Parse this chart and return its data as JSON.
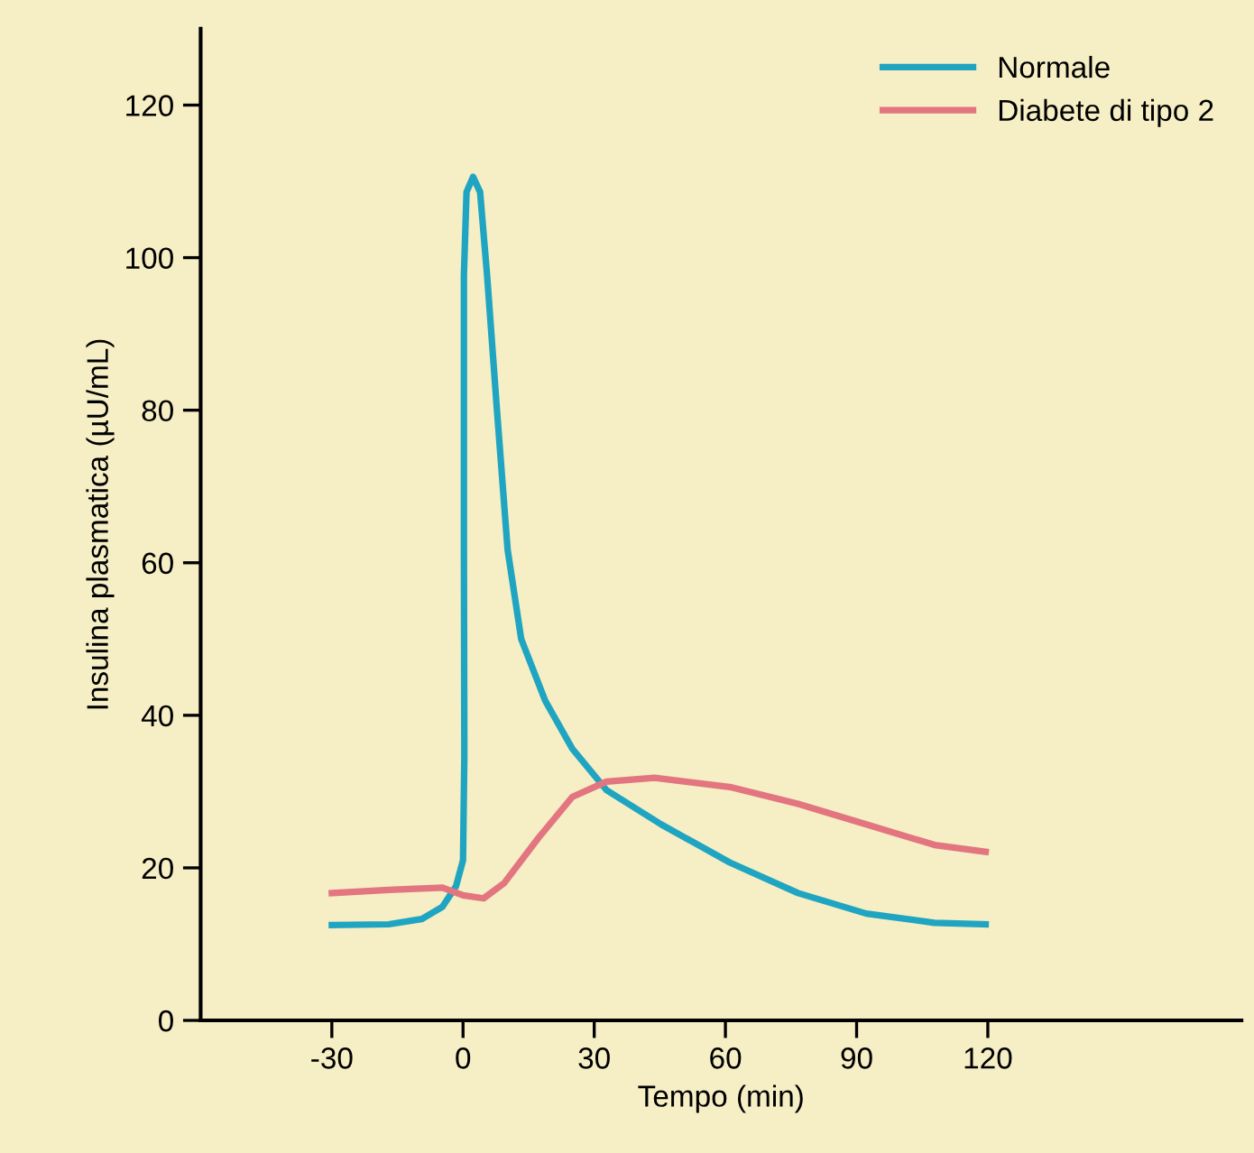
{
  "chart_data": {
    "type": "line",
    "xlabel": "Tempo (min)",
    "ylabel": "Insulina plasmatica (µU/mL)",
    "xlim": [
      -60,
      178
    ],
    "ylim": [
      0,
      130
    ],
    "xticks": [
      -30,
      0,
      30,
      60,
      90,
      120
    ],
    "yticks": [
      0,
      20,
      40,
      60,
      80,
      100,
      120
    ],
    "grid": false,
    "legend": "top right",
    "marker": "none",
    "line_style": "solid",
    "series": [
      {
        "name": "Normale",
        "color": "#1fa5c2",
        "x": [
          -30,
          -17,
          -9.4,
          -4.7,
          -1.6,
          0,
          0.3,
          0.2,
          0.2,
          0.8,
          2.3,
          3.9,
          5.5,
          7.8,
          10.2,
          13.3,
          18.8,
          25,
          32.8,
          45.3,
          61,
          76.6,
          92.2,
          107.8,
          119.5
        ],
        "values": [
          12.5,
          12.6,
          13.3,
          14.9,
          17.6,
          21,
          34.7,
          61.7,
          97.7,
          108.6,
          110.6,
          108.6,
          97.7,
          79.7,
          61.7,
          50,
          41.9,
          35.6,
          30.2,
          25.7,
          20.7,
          16.7,
          14,
          12.8,
          12.6
        ]
      },
      {
        "name": "Diabete di tipo 2",
        "color": "#e27580",
        "x": [
          -30,
          -17,
          -4.7,
          0,
          4.7,
          9.4,
          17.2,
          25,
          32.8,
          43.8,
          61,
          76.6,
          92.2,
          107.8,
          119.5
        ],
        "values": [
          16.7,
          17.1,
          17.4,
          16.4,
          16,
          18,
          23.9,
          29.3,
          31.3,
          31.8,
          30.6,
          28.4,
          25.7,
          23,
          22.1
        ]
      }
    ]
  }
}
